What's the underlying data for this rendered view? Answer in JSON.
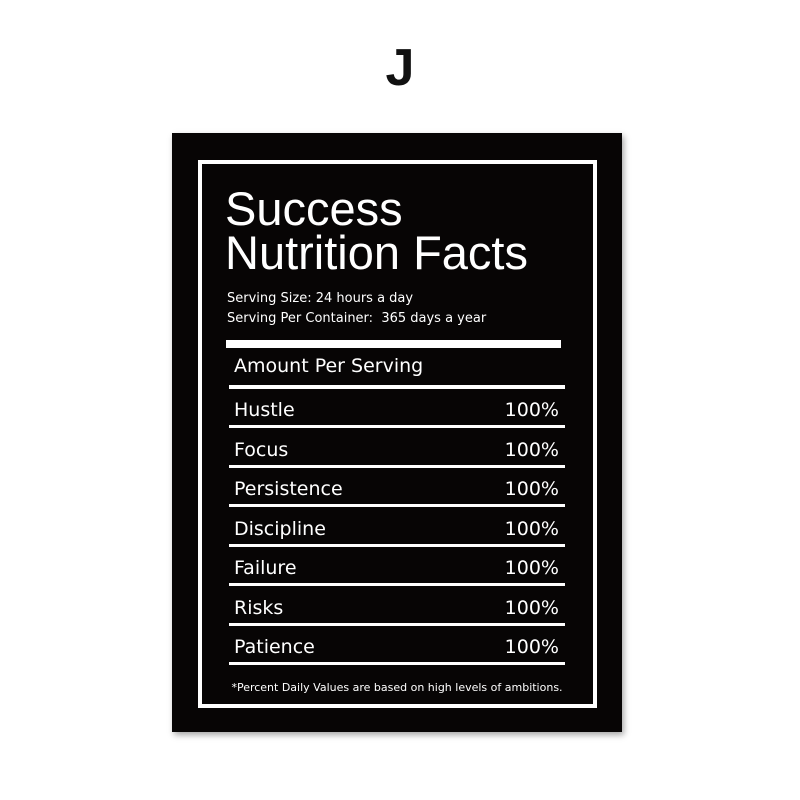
{
  "letter": "J",
  "poster": {
    "title_line1": "Success",
    "title_line2": "Nutrition Facts",
    "serving_size": "Serving Size: 24 hours a day",
    "serving_per_container": "Serving Per Container:  365 days a year",
    "amount_per_serving": "Amount Per Serving",
    "rows": [
      {
        "label": "Hustle",
        "value": "100%"
      },
      {
        "label": "Focus",
        "value": "100%"
      },
      {
        "label": "Persistence",
        "value": "100%"
      },
      {
        "label": "Discipline",
        "value": "100%"
      },
      {
        "label": "Failure",
        "value": "100%"
      },
      {
        "label": "Risks",
        "value": "100%"
      },
      {
        "label": "Patience",
        "value": "100%"
      }
    ],
    "footnote": "*Percent Daily Values are based on high levels of ambitions."
  }
}
